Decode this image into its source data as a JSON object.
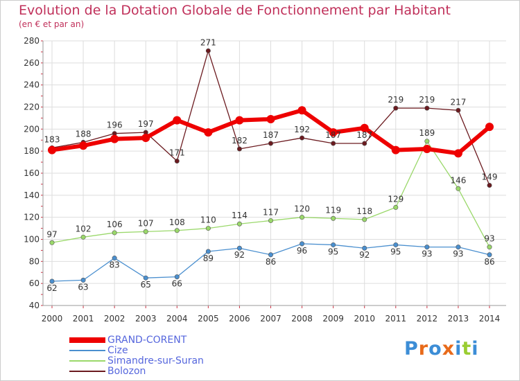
{
  "chart_data": {
    "type": "line",
    "title": "Evolution de la Dotation Globale de Fonctionnement par Habitant",
    "subtitle": "(en € et par an)",
    "x": [
      "2000",
      "2001",
      "2002",
      "2003",
      "2004",
      "2005",
      "2006",
      "2007",
      "2008",
      "2009",
      "2010",
      "2011",
      "2012",
      "2013",
      "2014"
    ],
    "ylim": [
      40,
      280
    ],
    "yticks": [
      40,
      60,
      80,
      100,
      120,
      140,
      160,
      180,
      200,
      220,
      240,
      260,
      280
    ],
    "grid": true,
    "legend_position": "bottom-left",
    "series": [
      {
        "name": "GRAND-CORENT",
        "color": "#ee0000",
        "labels": "none",
        "values": [
          181,
          185,
          191,
          192,
          208,
          197,
          208,
          209,
          217,
          197,
          201,
          181,
          182,
          178,
          202
        ]
      },
      {
        "name": "Cize",
        "color": "#4a8fcf",
        "labels": "below",
        "values": [
          62,
          63,
          83,
          65,
          66,
          89,
          92,
          86,
          96,
          95,
          92,
          95,
          93,
          93,
          86
        ]
      },
      {
        "name": "Simandre-sur-Suran",
        "color": "#9ad86a",
        "labels": "above",
        "values": [
          97,
          102,
          106,
          107,
          108,
          110,
          114,
          117,
          120,
          119,
          118,
          129,
          189,
          146,
          93
        ]
      },
      {
        "name": "Bolozon",
        "color": "#6b1a1f",
        "labels": "above",
        "values": [
          183,
          188,
          196,
          197,
          171,
          271,
          182,
          187,
          192,
          187,
          187,
          219,
          219,
          217,
          149
        ]
      }
    ]
  },
  "brand": {
    "text": "Proxiti",
    "letter_colors": [
      "#3c8dd6",
      "#e86a1a",
      "#3c8dd6",
      "#e86a1a",
      "#3c8dd6",
      "#9acd32",
      "#3c8dd6"
    ]
  }
}
